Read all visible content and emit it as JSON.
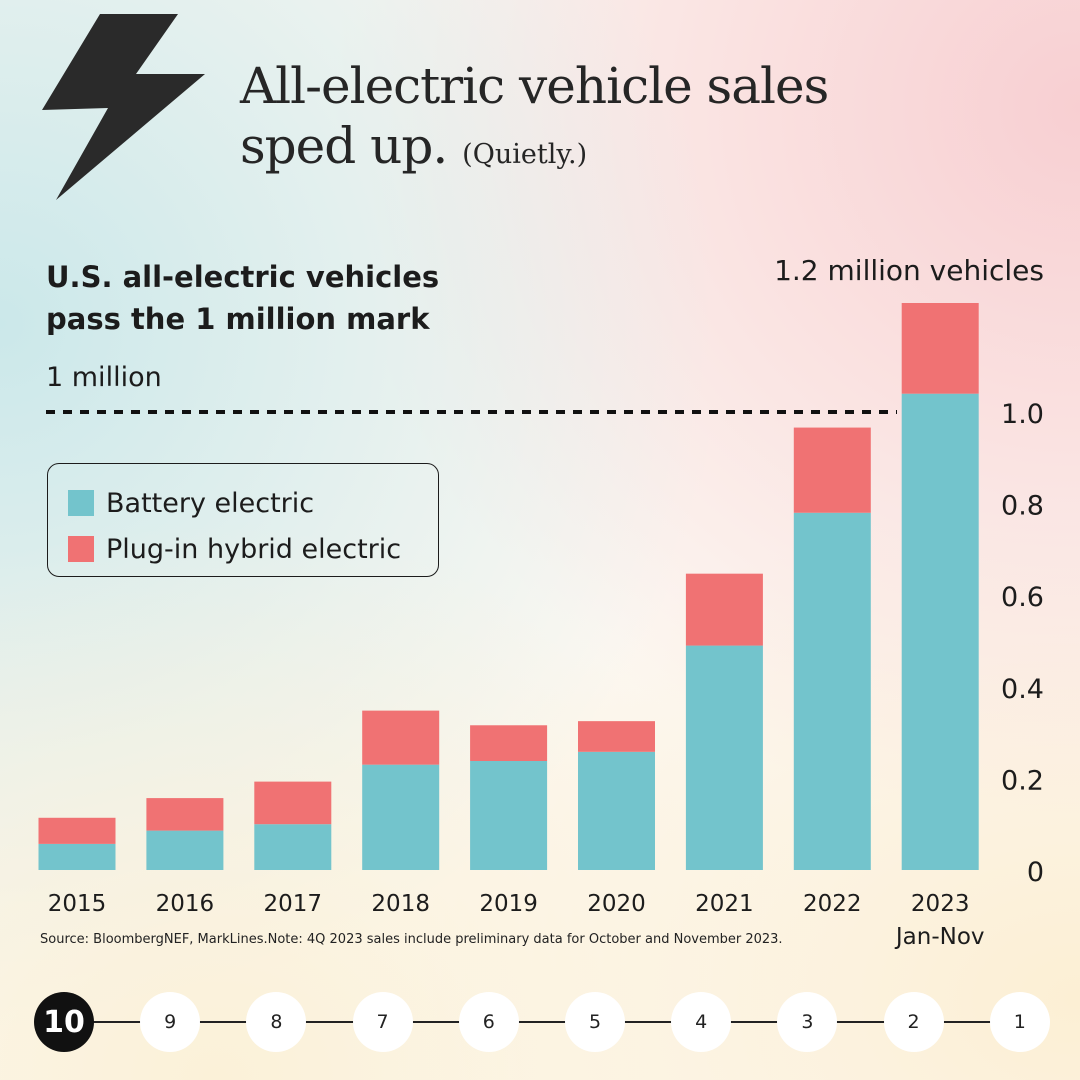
{
  "header": {
    "title_line1": "All-electric vehicle sales",
    "title_line2": "sped up.",
    "title_aside": "(Quietly.)",
    "icon": "lightning-bolt-icon"
  },
  "annotations": {
    "subtitle_line1": "U.S. all-electric vehicles",
    "subtitle_line2": "pass the 1 million mark",
    "total_label": "1.2 million vehicles",
    "million_label": "1 million"
  },
  "chart_data": {
    "type": "bar",
    "stacked": true,
    "categories": [
      "2015",
      "2016",
      "2017",
      "2018",
      "2019",
      "2020",
      "2021",
      "2022",
      "2023"
    ],
    "category_sublabels": [
      "",
      "",
      "",
      "",
      "",
      "",
      "",
      "",
      "Jan-Nov"
    ],
    "series": [
      {
        "name": "Battery electric",
        "color": "#73c4cc",
        "values": [
          0.057,
          0.086,
          0.1,
          0.23,
          0.238,
          0.258,
          0.49,
          0.78,
          1.04
        ]
      },
      {
        "name": "Plug-in hybrid electric",
        "color": "#f07273",
        "values": [
          0.057,
          0.071,
          0.093,
          0.118,
          0.078,
          0.067,
          0.157,
          0.186,
          0.198
        ]
      }
    ],
    "yticks": [
      "0",
      "0.2",
      "0.4",
      "0.6",
      "0.8",
      "1.0"
    ],
    "ylim": [
      0,
      1.24
    ],
    "reference_line": {
      "value": 1.0,
      "style": "dashed"
    },
    "legend": "left-middle"
  },
  "legend": [
    {
      "label": "Battery electric",
      "color": "#73c4cc"
    },
    {
      "label": "Plug-in hybrid electric",
      "color": "#f07273"
    }
  ],
  "footer": {
    "source": "Source: BloombergNEF, MarkLines.Note: 4Q 2023 sales include preliminary data for October and November 2023."
  },
  "stepper": {
    "steps": [
      "10",
      "9",
      "8",
      "7",
      "6",
      "5",
      "4",
      "3",
      "2",
      "1"
    ],
    "active": "10"
  }
}
